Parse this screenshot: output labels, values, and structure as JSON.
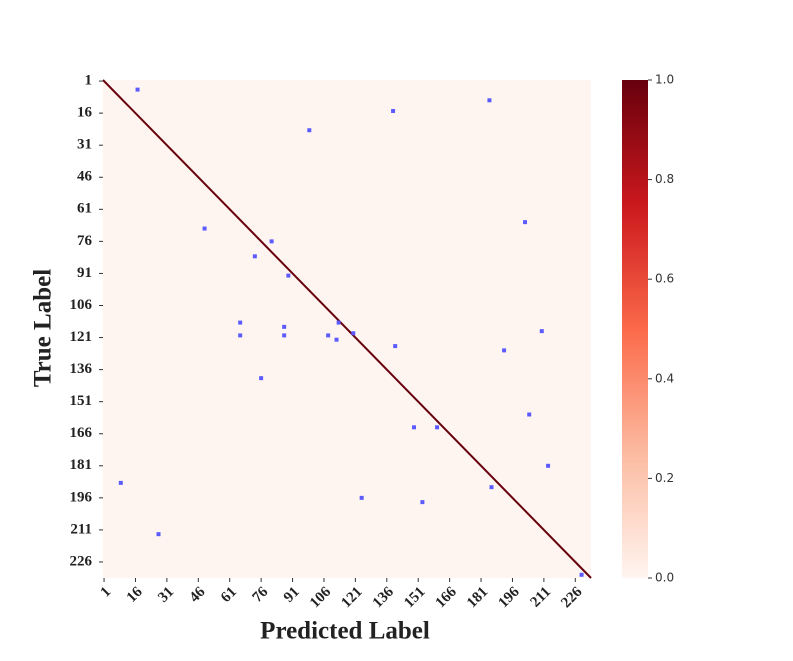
{
  "chart_data": {
    "type": "heatmap",
    "xlabel": "Predicted Label",
    "ylabel": "True Label",
    "xlim": [
      0.5,
      233.5
    ],
    "ylim": [
      0.5,
      233.5
    ],
    "xticks": [
      1,
      16,
      31,
      46,
      61,
      76,
      91,
      106,
      121,
      136,
      151,
      166,
      181,
      196,
      211,
      226
    ],
    "yticks": [
      1,
      16,
      31,
      46,
      61,
      76,
      91,
      106,
      121,
      136,
      151,
      166,
      181,
      196,
      211,
      226
    ],
    "background_value": 0,
    "diagonal_value": 1,
    "colormap": [
      "#fff5f0",
      "#fcbba1",
      "#fb6a4a",
      "#cb181d",
      "#67000d"
    ],
    "clim": [
      0,
      1
    ],
    "cticks": [
      {
        "value": 0,
        "label": "0.0"
      },
      0.2,
      0.4,
      0.6,
      0.8,
      {
        "value": 1,
        "label": "1.0"
      }
    ],
    "points": {
      "color": "#5b5bff",
      "x": [
        17,
        139,
        185,
        99,
        49,
        202,
        81,
        73,
        89,
        66,
        66,
        87,
        87,
        113,
        108,
        112,
        120,
        140,
        210,
        192,
        76,
        204,
        149,
        160,
        213,
        9,
        186,
        124,
        153,
        27,
        229
      ],
      "y": [
        5,
        15,
        10,
        24,
        70,
        67,
        76,
        83,
        92,
        114,
        120,
        116,
        120,
        114,
        120,
        122,
        119,
        125,
        118,
        127,
        140,
        157,
        163,
        163,
        181,
        189,
        191,
        196,
        198,
        213,
        232
      ]
    }
  }
}
